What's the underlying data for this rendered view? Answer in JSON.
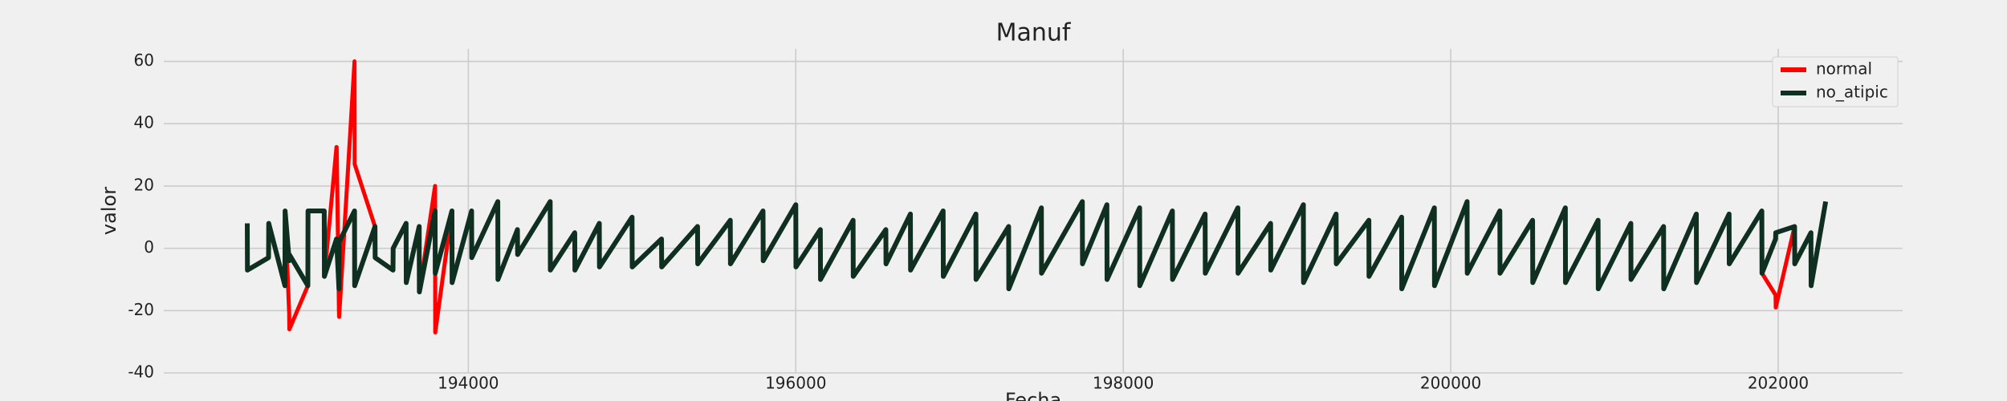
{
  "chart_data": {
    "type": "line",
    "title": "Manuf",
    "xlabel": "Fecha",
    "ylabel": "valor",
    "x": [
      192650,
      192651,
      192780,
      192781,
      192880,
      192881,
      192906,
      192907,
      193020,
      193021,
      193120,
      193121,
      193195,
      193196,
      193210,
      193211,
      193305,
      193306,
      193430,
      193431,
      193540,
      193541,
      193620,
      193621,
      193700,
      193701,
      193797,
      193798,
      193900,
      193901,
      194020,
      194021,
      194180,
      194181,
      194300,
      194301,
      194500,
      194501,
      194650,
      194651,
      194800,
      194801,
      195000,
      195001,
      195180,
      195181,
      195400,
      195401,
      195600,
      195601,
      195800,
      195801,
      196000,
      196001,
      196150,
      196151,
      196350,
      196351,
      196550,
      196551,
      196700,
      196701,
      196900,
      196901,
      197100,
      197101,
      197300,
      197301,
      197500,
      197501,
      197750,
      197751,
      197900,
      197901,
      198100,
      198101,
      198300,
      198301,
      198500,
      198501,
      198700,
      198701,
      198900,
      198901,
      199100,
      199101,
      199300,
      199301,
      199500,
      199501,
      199700,
      199701,
      199900,
      199901,
      200100,
      200101,
      200300,
      200301,
      200500,
      200501,
      200700,
      200701,
      200900,
      200901,
      201100,
      201101,
      201300,
      201301,
      201500,
      201501,
      201700,
      201701,
      201900,
      201901,
      201984,
      201985,
      202100,
      202101,
      202200,
      202201,
      202290
    ],
    "series": [
      {
        "name": "normal",
        "color": "#ff0000",
        "values": [
          8,
          -7,
          -3,
          8,
          -12,
          12,
          -21,
          -26,
          -12,
          12,
          12,
          -9,
          32.5,
          32.5,
          -20,
          -22,
          60,
          27,
          7,
          -3,
          -7,
          0,
          8,
          -11,
          7,
          -14,
          20,
          -27,
          12,
          -11,
          12,
          -3,
          15,
          -10,
          6,
          -2,
          15,
          -7,
          5,
          -7,
          8,
          -6,
          10,
          -6,
          3,
          -6,
          7,
          -5,
          9,
          -5,
          12,
          -4,
          14,
          -6,
          6,
          -10,
          9,
          -9,
          6,
          -5,
          11,
          -7,
          12,
          -9,
          11,
          -10,
          7,
          -13,
          13,
          -8,
          15,
          -5,
          14,
          -10,
          13,
          -12,
          12,
          -10,
          11,
          -8,
          13,
          -8,
          8,
          -7,
          14,
          -11,
          11,
          -5,
          9,
          -9,
          10,
          -13,
          13,
          -12,
          15,
          -8,
          12,
          -8,
          9,
          -11,
          13,
          -11,
          9,
          -13,
          8,
          -10,
          7,
          -13,
          11,
          -11,
          11,
          -5,
          12,
          -8,
          -15,
          -19,
          7,
          -5,
          5,
          -12,
          15
        ]
      },
      {
        "name": "no_atipic",
        "color": "#0f2f20",
        "values": [
          8,
          -7,
          -3,
          8,
          -12,
          12,
          -4,
          -2,
          -12,
          12,
          12,
          -9,
          3,
          2,
          -13,
          2,
          12,
          -12,
          7,
          -3,
          -7,
          0,
          8,
          -11,
          7,
          -14,
          12,
          -8,
          12,
          -11,
          12,
          -3,
          15,
          -10,
          6,
          -2,
          15,
          -7,
          5,
          -7,
          8,
          -6,
          10,
          -6,
          3,
          -6,
          7,
          -5,
          9,
          -5,
          12,
          -4,
          14,
          -6,
          6,
          -10,
          9,
          -9,
          6,
          -5,
          11,
          -7,
          12,
          -9,
          11,
          -10,
          7,
          -13,
          13,
          -8,
          15,
          -5,
          14,
          -10,
          13,
          -12,
          12,
          -10,
          11,
          -8,
          13,
          -8,
          8,
          -7,
          14,
          -11,
          11,
          -5,
          9,
          -9,
          10,
          -13,
          13,
          -12,
          15,
          -8,
          12,
          -8,
          9,
          -11,
          13,
          -11,
          9,
          -13,
          8,
          -10,
          7,
          -13,
          11,
          -11,
          11,
          -5,
          12,
          -8,
          3,
          5,
          7,
          -5,
          5,
          -12,
          15
        ]
      }
    ],
    "xlim": [
      192140,
      202760
    ],
    "ylim": [
      -40,
      64
    ],
    "xticks": [
      194000,
      196000,
      198000,
      200000,
      202000
    ],
    "yticks": [
      -40,
      -20,
      0,
      20,
      40,
      60
    ],
    "grid": true,
    "legend": "upper right"
  }
}
